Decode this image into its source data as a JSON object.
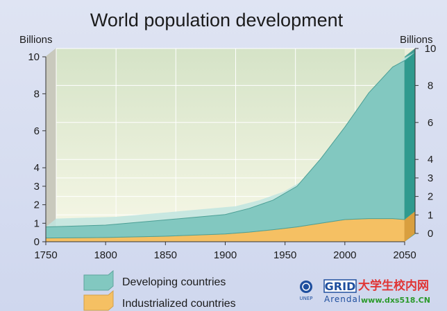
{
  "chart_data": {
    "type": "area",
    "title": "World population development",
    "ylabel_left": "Billions",
    "ylabel_right": "Billions",
    "x_ticks": [
      "1750",
      "1800",
      "1850",
      "1900",
      "1950",
      "2000",
      "2050"
    ],
    "y_ticks": [
      "0",
      "1",
      "2",
      "3",
      "4",
      "6",
      "8",
      "10"
    ],
    "y_tick_values": [
      0,
      1,
      2,
      3,
      4,
      6,
      8,
      10
    ],
    "xlim": [
      1750,
      2050
    ],
    "ylim": [
      0,
      10
    ],
    "stacked": true,
    "x": [
      1750,
      1800,
      1850,
      1900,
      1920,
      1940,
      1960,
      1980,
      2000,
      2020,
      2040,
      2050
    ],
    "series": [
      {
        "name": "Industrialized countries",
        "color": "#f5c063",
        "values": [
          0.2,
          0.23,
          0.3,
          0.42,
          0.52,
          0.65,
          0.8,
          1.0,
          1.2,
          1.25,
          1.25,
          1.2
        ]
      },
      {
        "name": "Developing countries",
        "color": "#82c8c0",
        "values": [
          0.6,
          0.67,
          0.88,
          1.05,
          1.28,
          1.6,
          2.2,
          3.5,
          5.0,
          6.8,
          8.2,
          8.6
        ]
      }
    ],
    "grid": true,
    "legend": "bottom"
  },
  "footer": {
    "logo_unep": "UNEP",
    "logo_grid": "GRID",
    "logo_arendal": "Arendal",
    "watermark_cn": "大学生校内网",
    "watermark_url": "www.dxs518.CN"
  }
}
